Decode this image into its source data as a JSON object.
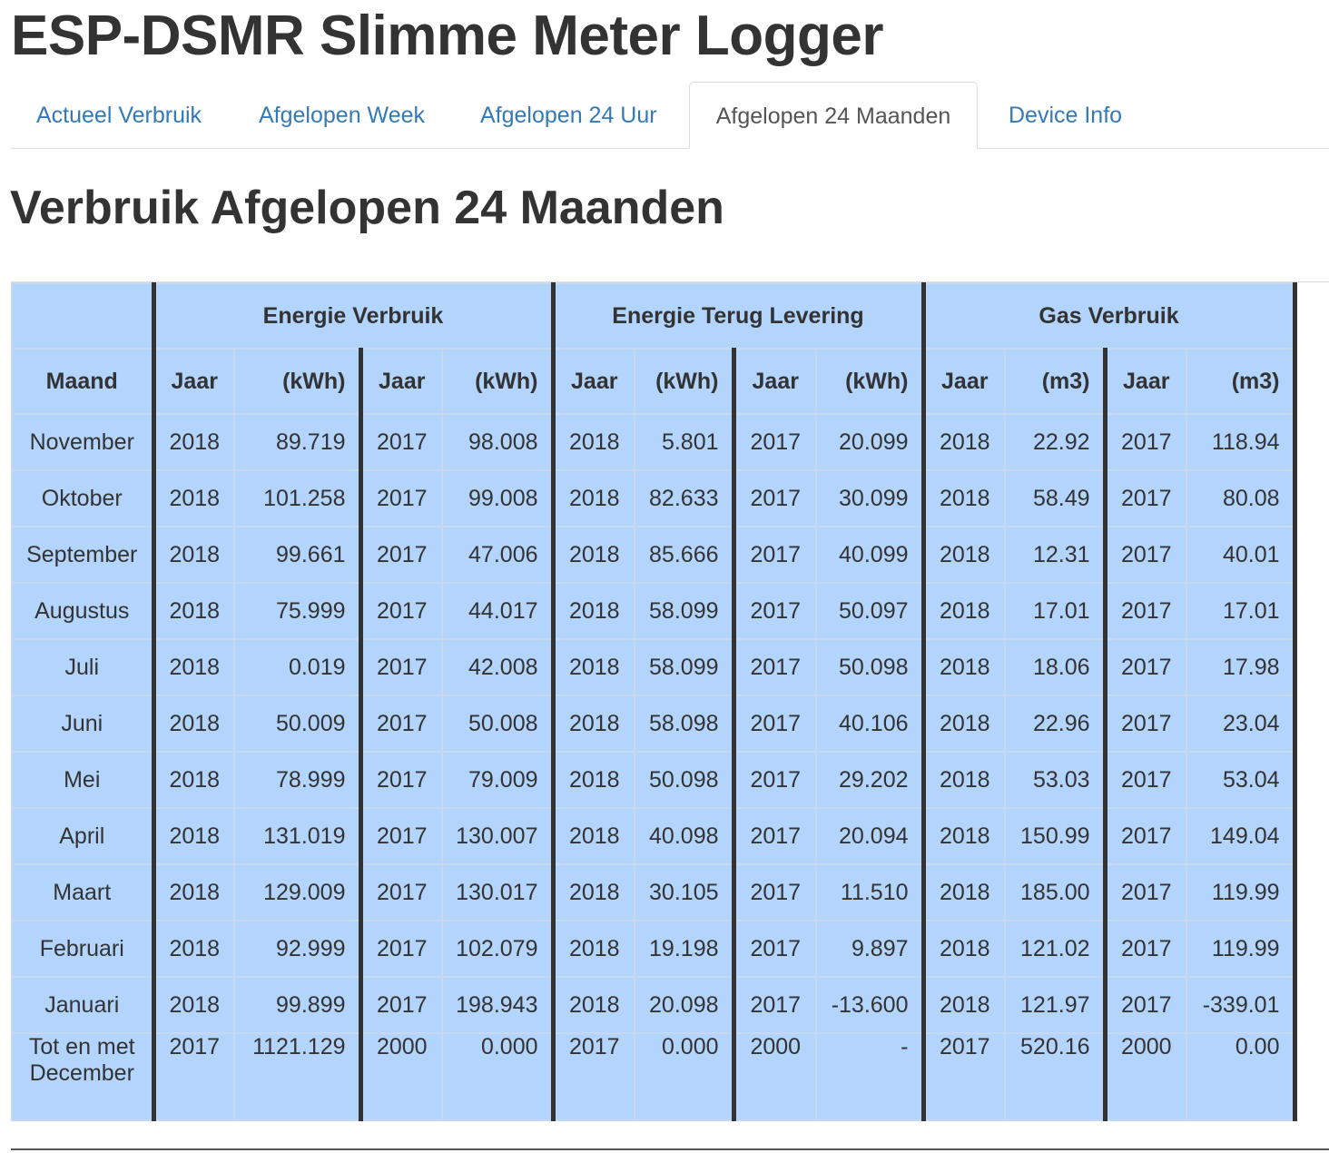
{
  "app": {
    "title": "ESP-DSMR Slimme Meter Logger"
  },
  "tabs": [
    {
      "label": "Actueel Verbruik",
      "active": false
    },
    {
      "label": "Afgelopen Week",
      "active": false
    },
    {
      "label": "Afgelopen 24 Uur",
      "active": false
    },
    {
      "label": "Afgelopen 24 Maanden",
      "active": true
    },
    {
      "label": "Device Info",
      "active": false
    }
  ],
  "page": {
    "title": "Verbruik Afgelopen 24 Maanden"
  },
  "table": {
    "groups": [
      "Energie Verbruik",
      "Energie Terug Levering",
      "Gas Verbruik"
    ],
    "subheaders": {
      "month": "Maand",
      "year": "Jaar",
      "kwh": "(kWh)",
      "m3": "(m3)"
    },
    "colors": {
      "background": "#b3d4fc",
      "separator": "#333333"
    },
    "rows": [
      {
        "month": "November",
        "cells": [
          "2018",
          "89.719",
          "2017",
          "98.008",
          "2018",
          "5.801",
          "2017",
          "20.099",
          "2018",
          "22.92",
          "2017",
          "118.94"
        ]
      },
      {
        "month": "Oktober",
        "cells": [
          "2018",
          "101.258",
          "2017",
          "99.008",
          "2018",
          "82.633",
          "2017",
          "30.099",
          "2018",
          "58.49",
          "2017",
          "80.08"
        ]
      },
      {
        "month": "September",
        "cells": [
          "2018",
          "99.661",
          "2017",
          "47.006",
          "2018",
          "85.666",
          "2017",
          "40.099",
          "2018",
          "12.31",
          "2017",
          "40.01"
        ]
      },
      {
        "month": "Augustus",
        "cells": [
          "2018",
          "75.999",
          "2017",
          "44.017",
          "2018",
          "58.099",
          "2017",
          "50.097",
          "2018",
          "17.01",
          "2017",
          "17.01"
        ]
      },
      {
        "month": "Juli",
        "cells": [
          "2018",
          "0.019",
          "2017",
          "42.008",
          "2018",
          "58.099",
          "2017",
          "50.098",
          "2018",
          "18.06",
          "2017",
          "17.98"
        ]
      },
      {
        "month": "Juni",
        "cells": [
          "2018",
          "50.009",
          "2017",
          "50.008",
          "2018",
          "58.098",
          "2017",
          "40.106",
          "2018",
          "22.96",
          "2017",
          "23.04"
        ]
      },
      {
        "month": "Mei",
        "cells": [
          "2018",
          "78.999",
          "2017",
          "79.009",
          "2018",
          "50.098",
          "2017",
          "29.202",
          "2018",
          "53.03",
          "2017",
          "53.04"
        ]
      },
      {
        "month": "April",
        "cells": [
          "2018",
          "131.019",
          "2017",
          "130.007",
          "2018",
          "40.098",
          "2017",
          "20.094",
          "2018",
          "150.99",
          "2017",
          "149.04"
        ]
      },
      {
        "month": "Maart",
        "cells": [
          "2018",
          "129.009",
          "2017",
          "130.017",
          "2018",
          "30.105",
          "2017",
          "11.510",
          "2018",
          "185.00",
          "2017",
          "119.99"
        ]
      },
      {
        "month": "Februari",
        "cells": [
          "2018",
          "92.999",
          "2017",
          "102.079",
          "2018",
          "19.198",
          "2017",
          "9.897",
          "2018",
          "121.02",
          "2017",
          "119.99"
        ]
      },
      {
        "month": "Januari",
        "cells": [
          "2018",
          "99.899",
          "2017",
          "198.943",
          "2018",
          "20.098",
          "2017",
          "-13.600",
          "2018",
          "121.97",
          "2017",
          "-339.01"
        ]
      },
      {
        "month": "Tot en met December",
        "cells": [
          "2017",
          "1121.129",
          "2000",
          "0.000",
          "2017",
          "0.000",
          "2000",
          "-",
          "2017",
          "520.16",
          "2000",
          "0.00"
        ]
      }
    ]
  }
}
